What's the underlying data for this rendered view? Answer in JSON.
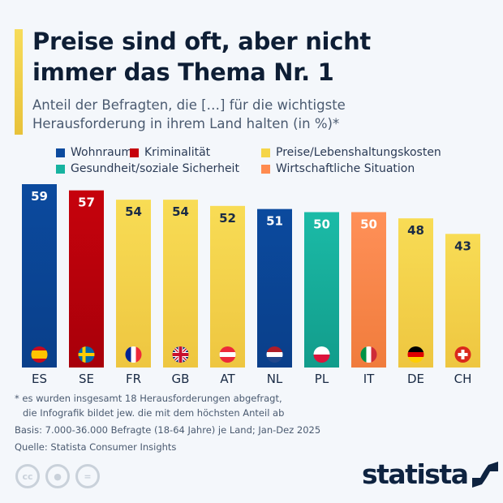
{
  "title": "Preise sind oft, aber nicht immer das Thema Nr. 1",
  "subtitle": "Anteil der Befragten, die […] für die wichtigste Herausforderung in ihrem Land halten (in %)*",
  "notes": {
    "footnote1": "* es wurden insgesamt 18 Herausforderungen abgefragt,",
    "footnote2": "die Infografik bildet jew. die mit dem höchsten Anteil ab",
    "basis": "Basis: 7.000-36.000 Befragte (18-64 Jahre) je Land; Jan-Dez 2025",
    "source": "Quelle: Statista Consumer Insights"
  },
  "logo": "statista",
  "license_icons": [
    "cc-icon",
    "by-icon",
    "nd-icon"
  ],
  "chart_data": {
    "type": "bar",
    "categories": [
      "ES",
      "SE",
      "FR",
      "GB",
      "AT",
      "NL",
      "PL",
      "IT",
      "DE",
      "CH"
    ],
    "values": [
      59,
      57,
      54,
      54,
      52,
      51,
      50,
      50,
      48,
      43
    ],
    "bar_categories": [
      "Wohnraum",
      "Kriminalität",
      "Preise/Lebenshaltungskosten",
      "Preise/Lebenshaltungskosten",
      "Preise/Lebenshaltungskosten",
      "Wohnraum",
      "Gesundheit/soziale Sicherheit",
      "Wirtschaftliche Situation",
      "Preise/Lebenshaltungskosten",
      "Preise/Lebenshaltungskosten"
    ],
    "legend": [
      {
        "name": "Wohnraum",
        "color": "#0b4a9e"
      },
      {
        "name": "Kriminalität",
        "color": "#c6020c"
      },
      {
        "name": "Preise/Lebenshaltungskosten",
        "color": "#f5d548"
      },
      {
        "name": "Gesundheit/soziale Sicherheit",
        "color": "#17b3a0"
      },
      {
        "name": "Wirtschaftliche Situation",
        "color": "#ff8b4f"
      }
    ],
    "legend_position": "top",
    "ylim": [
      0,
      59
    ],
    "grid": false,
    "data_labels": true
  }
}
